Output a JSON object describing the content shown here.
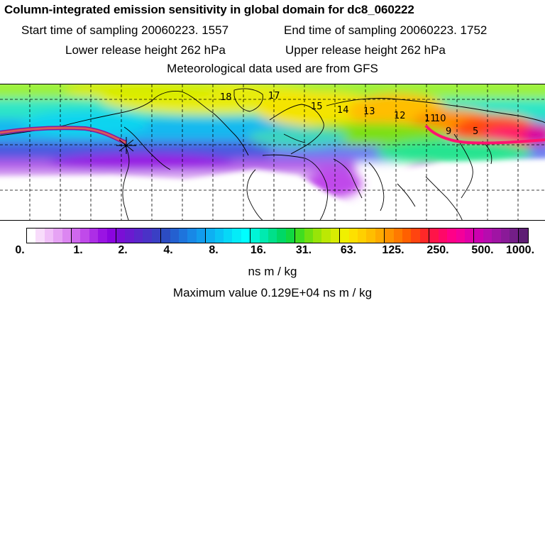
{
  "title": "Column-integrated emission sensitivity in global domain for dc8_060222",
  "sampling": {
    "start": "Start time of sampling 20060223.  1557",
    "end": "End time of sampling 20060223.  1752"
  },
  "release": {
    "lower": "Lower release height  262 hPa",
    "upper": "Upper release height  262 hPa"
  },
  "met_data": "Meteorological data used are from GFS",
  "map": {
    "track_labels": [
      "18",
      "17",
      "15",
      "14",
      "13",
      "12",
      "11",
      "10",
      "9",
      "5"
    ],
    "track_color": "#d85a5a"
  },
  "colorbar": {
    "tick_labels": [
      "0.",
      "1.",
      "2.",
      "4.",
      "8.",
      "16.",
      "31.",
      "63.",
      "125.",
      "250.",
      "500.",
      "1000."
    ],
    "colors": [
      "#ffffff",
      "#f8dcfb",
      "#f0bff8",
      "#e6a3f4",
      "#dc86f1",
      "#cf68ee",
      "#c04aea",
      "#ad2ee6",
      "#9a14e3",
      "#8a05df",
      "#7a0fd6",
      "#6a1ad0",
      "#5a26cb",
      "#4a32c7",
      "#3a3fc4",
      "#2c4cc2",
      "#2460d0",
      "#1e74dc",
      "#1888e6",
      "#129ced",
      "#0eb0f2",
      "#0ac4f5",
      "#06d8f7",
      "#04ecf8",
      "#00ffff",
      "#00f4d6",
      "#00eab0",
      "#00e08a",
      "#00d866",
      "#10d840",
      "#40dd20",
      "#70e010",
      "#98e408",
      "#bce804",
      "#d8ec02",
      "#f0f000",
      "#fde000",
      "#ffd000",
      "#ffbe00",
      "#ffaa00",
      "#ff9200",
      "#ff7a00",
      "#ff6000",
      "#ff4410",
      "#ff2828",
      "#ff1448",
      "#ff0868",
      "#ff0088",
      "#f4009a",
      "#e000a8",
      "#cc00b0",
      "#b60cae",
      "#a014a4",
      "#8a1a98",
      "#741e88",
      "#5e1e74"
    ],
    "major_every": 5,
    "unit": "ns m / kg"
  },
  "max_value": "Maximum value  0.129E+04 ns m / kg"
}
